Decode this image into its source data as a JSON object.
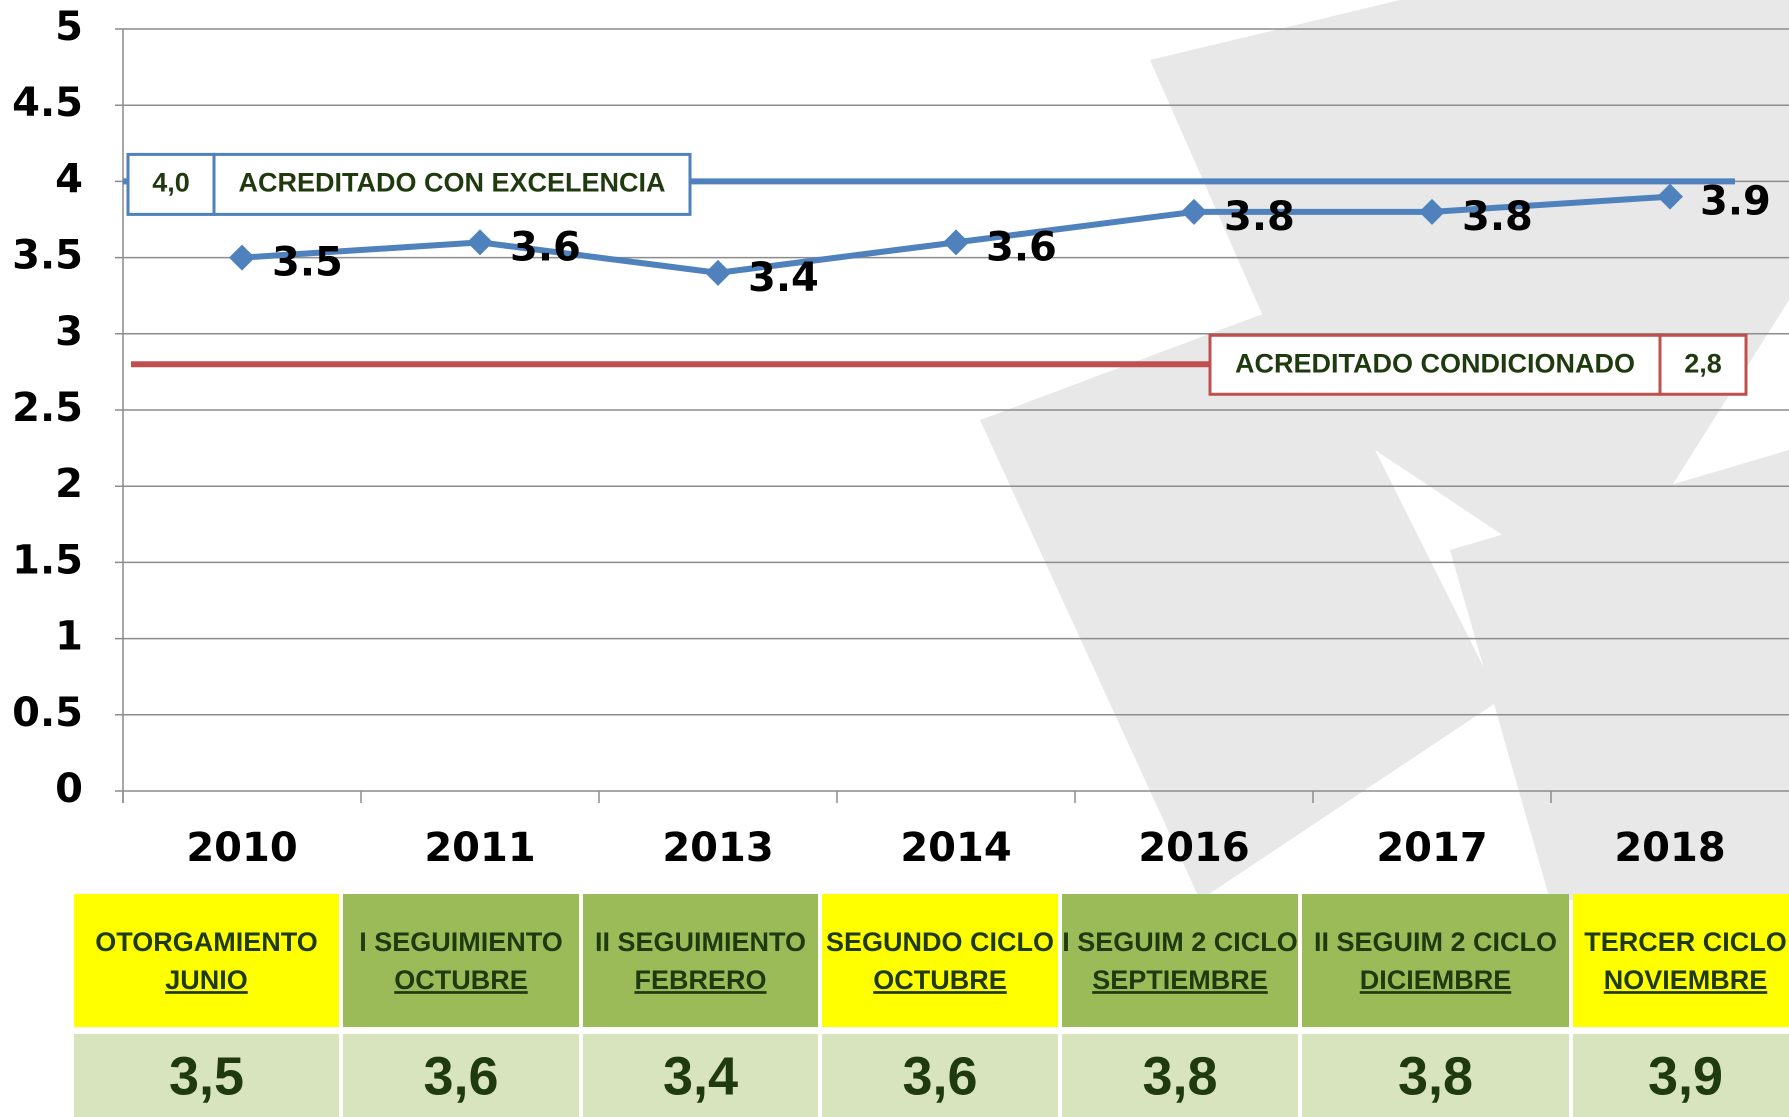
{
  "chart_data": {
    "type": "line",
    "categories": [
      "2010",
      "2011",
      "2013",
      "2014",
      "2016",
      "2017",
      "2018"
    ],
    "values": [
      3.5,
      3.6,
      3.4,
      3.6,
      3.8,
      3.8,
      3.9
    ],
    "color": "#4f81bd",
    "ylim": [
      0,
      5
    ],
    "yticks": [
      0,
      0.5,
      1,
      1.5,
      2,
      2.5,
      3,
      3.5,
      4,
      4.5,
      5
    ],
    "grid": true,
    "reference_lines": [
      {
        "value": 4.0,
        "label": "4,0",
        "text": "ACREDITADO CON EXCELENCIA",
        "color": "#4f81bd"
      },
      {
        "value": 2.8,
        "label": "2,8",
        "text": "ACREDITADO CONDICIONADO",
        "color": "#c0504d"
      }
    ]
  },
  "table": {
    "phases": [
      {
        "line1": "OTORGAMIENTO",
        "line2": "JUNIO",
        "color": "#ffff00"
      },
      {
        "line1": "I SEGUIMIENTO",
        "line2": "OCTUBRE",
        "color": "#9bbb59"
      },
      {
        "line1": "II SEGUIMIENTO",
        "line2": "FEBRERO",
        "color": "#9bbb59"
      },
      {
        "line1": "SEGUNDO CICLO",
        "line2": "OCTUBRE",
        "color": "#ffff00"
      },
      {
        "line1": "I SEGUIM 2 CICLO",
        "line2": "SEPTIEMBRE",
        "color": "#9bbb59"
      },
      {
        "line1": "II SEGUIM 2 CICLO",
        "line2": "DICIEMBRE",
        "color": "#9bbb59"
      },
      {
        "line1": "TERCER CICLO",
        "line2": "NOVIEMBRE",
        "color": "#ffff00"
      }
    ],
    "scores": [
      "3,5",
      "3,6",
      "3,4",
      "3,6",
      "3,8",
      "3,8",
      "3,9"
    ]
  }
}
